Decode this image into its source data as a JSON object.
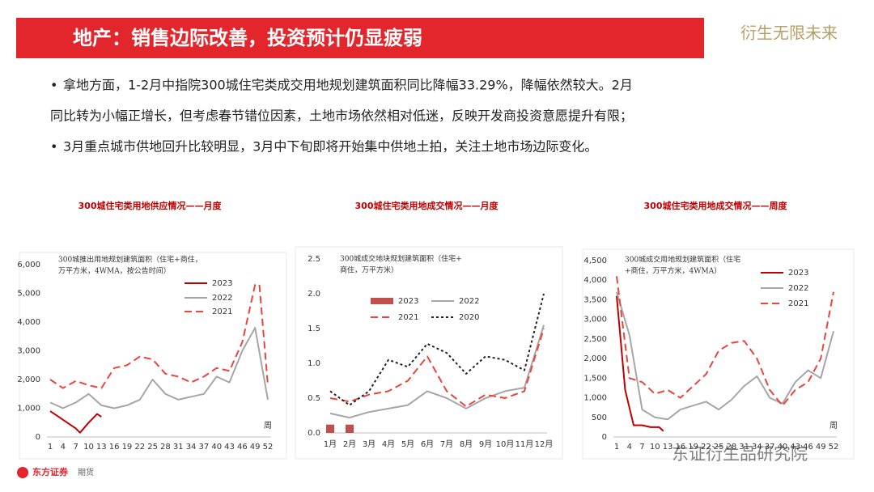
{
  "header": {
    "title": "地产：销售边际改善，投资预计仍显疲弱",
    "slogan": "衍生无限未来"
  },
  "bullets": [
    [
      "拿地方面，1-2月中指院300城住宅类成交用地规划建筑面积同比降幅33.29%，降幅依然较大。2月",
      "同比转为小幅正增长，但考虑春节错位因素，土地市场依然相对低迷，反映开发商投资意愿提升有限；"
    ],
    [
      "3月重点城市供地回升比较明显，3月中下旬即将开始集中供地土拍，关注土地市场边际变化。"
    ]
  ],
  "footer": {
    "logo": "东方证券",
    "sub": "期货",
    "watermark": "东证衍生品研究院"
  },
  "chart_data": [
    {
      "type": "line",
      "title": "300城住宅类用地供应情况——月度",
      "annotation": [
        "300城推出用地规划建筑面积（住宅+商住，",
        "万平方米，4WMA，按公告时间）"
      ],
      "x_label": "周",
      "xlim": [
        1,
        52
      ],
      "xticks": [
        1,
        4,
        7,
        10,
        13,
        16,
        19,
        22,
        25,
        28,
        31,
        34,
        37,
        40,
        43,
        46,
        49,
        52
      ],
      "ylim": [
        0,
        6000
      ],
      "yticks": [
        0,
        {
          "value": 1000,
          "label": "1,000"
        },
        {
          "value": 2000,
          "label": "2,000"
        },
        {
          "value": 3000,
          "label": "3,000"
        },
        {
          "value": 4000,
          "label": "4,000"
        },
        {
          "value": 5000,
          "label": "5,000"
        },
        {
          "value": 6000,
          "label": "6,000"
        }
      ],
      "series": [
        {
          "name": "2023",
          "color": "#c00000",
          "x": [
            1,
            3,
            5,
            7,
            8,
            10,
            12,
            13
          ],
          "values": [
            900,
            700,
            500,
            300,
            150,
            500,
            800,
            700
          ]
        },
        {
          "name": "2022",
          "color": "#a6a6a6",
          "x": [
            1,
            4,
            7,
            10,
            13,
            16,
            19,
            22,
            25,
            28,
            31,
            34,
            37,
            40,
            43,
            46,
            49,
            52
          ],
          "values": [
            1200,
            1000,
            1200,
            1500,
            1100,
            1000,
            1100,
            1300,
            2000,
            1500,
            1300,
            1400,
            1500,
            2100,
            1900,
            3000,
            3800,
            1300
          ]
        },
        {
          "name": "2021",
          "color": "#e8463c",
          "dash": "dashed",
          "x": [
            1,
            4,
            7,
            10,
            13,
            16,
            19,
            22,
            25,
            28,
            31,
            34,
            37,
            40,
            43,
            46,
            49,
            50,
            52
          ],
          "values": [
            2000,
            1700,
            1950,
            1800,
            1700,
            2400,
            2500,
            2800,
            2700,
            2200,
            2100,
            1900,
            2100,
            2400,
            2300,
            3300,
            5300,
            5300,
            1800
          ]
        }
      ]
    },
    {
      "type": "line",
      "title": "300城住宅类用地成交情况——月度",
      "annotation": [
        "300城成交地块规划建筑面积（住宅+",
        "商住，万平方米）"
      ],
      "categories": [
        "1月",
        "2月",
        "3月",
        "4月",
        "5月",
        "6月",
        "7月",
        "8月",
        "9月",
        "10月",
        "11月",
        "12月"
      ],
      "ylim": [
        0,
        2.5
      ],
      "yticks": [
        {
          "value": 0,
          "label": "0.0"
        },
        0.5,
        {
          "value": 1,
          "label": "1.0"
        },
        1.5,
        {
          "value": 2,
          "label": "2.0"
        },
        2.5
      ],
      "series": [
        {
          "name": "2023",
          "color": "#c0504d",
          "kind": "bar",
          "values": [
            0.12,
            0.12,
            null,
            null,
            null,
            null,
            null,
            null,
            null,
            null,
            null,
            null
          ]
        },
        {
          "name": "2022",
          "color": "#a6a6a6",
          "values": [
            0.28,
            0.22,
            0.3,
            0.35,
            0.4,
            0.6,
            0.5,
            0.35,
            0.5,
            0.6,
            0.65,
            1.55
          ]
        },
        {
          "name": "2021",
          "color": "#e8463c",
          "dash": "dashed",
          "values": [
            0.5,
            0.45,
            0.55,
            0.6,
            0.75,
            1.1,
            0.6,
            0.38,
            0.55,
            0.5,
            0.6,
            1.5
          ]
        },
        {
          "name": "2020",
          "color": "#222222",
          "dash": "dotted",
          "values": [
            0.6,
            0.4,
            0.6,
            1.05,
            0.95,
            1.28,
            1.15,
            0.85,
            1.1,
            1.05,
            0.9,
            2.0
          ]
        }
      ]
    },
    {
      "type": "line",
      "title": "300城住宅类用地成交情况——周度",
      "annotation": [
        "300城成交用地规划建筑面积（住宅",
        "+商住，万平方米，4WMA）"
      ],
      "x_label": "周",
      "xlim": [
        1,
        52
      ],
      "xticks": [
        1,
        4,
        7,
        10,
        13,
        16,
        19,
        22,
        25,
        28,
        31,
        34,
        37,
        40,
        43,
        46,
        49,
        52
      ],
      "ylim": [
        0,
        4500
      ],
      "yticks": [
        0,
        500,
        {
          "value": 1000,
          "label": "1,000"
        },
        {
          "value": 1500,
          "label": "1,500"
        },
        {
          "value": 2000,
          "label": "2,000"
        },
        {
          "value": 2500,
          "label": "2,500"
        },
        {
          "value": 3000,
          "label": "3,000"
        },
        {
          "value": 3500,
          "label": "3,500"
        },
        {
          "value": 4000,
          "label": "4,000"
        },
        {
          "value": 4500,
          "label": "4,500"
        }
      ],
      "series": [
        {
          "name": "2023",
          "color": "#c00000",
          "x": [
            1,
            3,
            5,
            7,
            9,
            11,
            12
          ],
          "values": [
            3600,
            1200,
            300,
            300,
            250,
            250,
            150
          ]
        },
        {
          "name": "2022",
          "color": "#a6a6a6",
          "x": [
            1,
            4,
            7,
            10,
            13,
            16,
            19,
            22,
            25,
            28,
            31,
            34,
            37,
            40,
            43,
            46,
            49,
            52
          ],
          "values": [
            3700,
            2600,
            700,
            500,
            450,
            700,
            800,
            900,
            700,
            950,
            1300,
            1550,
            1000,
            850,
            1400,
            1700,
            1500,
            2700
          ]
        },
        {
          "name": "2021",
          "color": "#e8463c",
          "dash": "dashed",
          "x": [
            1,
            4,
            7,
            10,
            13,
            16,
            19,
            22,
            25,
            28,
            31,
            34,
            37,
            40,
            43,
            46,
            49,
            52
          ],
          "values": [
            4100,
            1500,
            1400,
            1100,
            1200,
            1000,
            1300,
            1600,
            2200,
            2400,
            2450,
            2000,
            1200,
            800,
            1200,
            1400,
            2000,
            3700
          ]
        }
      ]
    }
  ]
}
